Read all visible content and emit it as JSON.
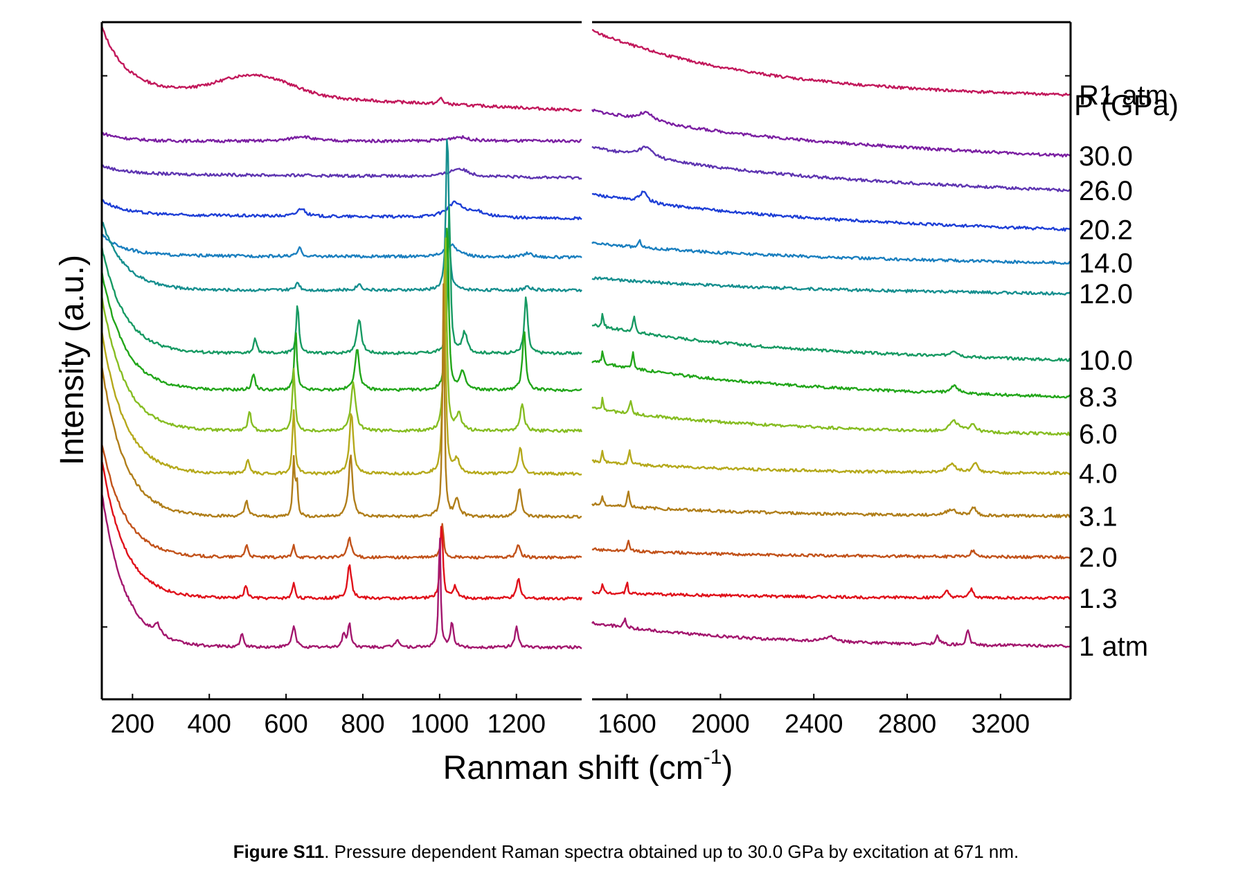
{
  "chart_data": {
    "type": "line",
    "title": "",
    "xlabel": "Ranman shift (cm",
    "xlabel_sup": "-1",
    "xlabel_end": ")",
    "ylabel": "Intensity (a.u.)",
    "legend_title": "P (GPa)",
    "axis_break": [
      1370,
      1450
    ],
    "xlim": [
      120,
      3500
    ],
    "xticks_left": [
      200,
      400,
      600,
      800,
      1000,
      1200
    ],
    "xticks_right": [
      1600,
      2000,
      2400,
      2800,
      3200
    ],
    "y_axis": "arbitrary units, traces vertically offset",
    "series": [
      {
        "label": "R1 atm",
        "color": "#c2185b",
        "offset": 13.5,
        "left_base": [
          1.5,
          0.2
        ],
        "right_base": [
          1.6,
          -0.05
        ],
        "hump": true,
        "peaks": [
          [
            1003,
            0.15,
            6
          ]
        ]
      },
      {
        "label": "30.0",
        "color": "#7b1fa2",
        "offset": 12.4,
        "left_base": [
          0.2,
          0.0
        ],
        "right_base": [
          0.75,
          -0.4
        ],
        "peaks": [
          [
            640,
            0.12,
            30
          ],
          [
            1050,
            0.1,
            30
          ],
          [
            1680,
            0.2,
            40
          ]
        ]
      },
      {
        "label": "26.0",
        "color": "#5e35b1",
        "offset": 11.5,
        "left_base": [
          0.2,
          0.1
        ],
        "right_base": [
          0.75,
          -0.35
        ],
        "peaks": [
          [
            1050,
            0.2,
            30
          ],
          [
            1680,
            0.25,
            40
          ]
        ]
      },
      {
        "label": "20.2",
        "color": "#1e3fd6",
        "offset": 10.5,
        "left_base": [
          0.35,
          0.1
        ],
        "right_base": [
          0.6,
          -0.3
        ],
        "peaks": [
          [
            640,
            0.2,
            12
          ],
          [
            1040,
            0.35,
            25
          ],
          [
            1100,
            0.12,
            30
          ],
          [
            1670,
            0.25,
            20
          ]
        ]
      },
      {
        "label": "14.0",
        "color": "#1a7fbf",
        "offset": 9.55,
        "left_base": [
          0.5,
          0.05
        ],
        "right_base": [
          0.35,
          -0.15
        ],
        "peaks": [
          [
            635,
            0.2,
            6
          ],
          [
            1030,
            0.3,
            20
          ],
          [
            1230,
            0.1,
            15
          ],
          [
            1655,
            0.15,
            8
          ]
        ]
      },
      {
        "label": "12.0",
        "color": "#168f8f",
        "offset": 8.75,
        "left_base": [
          1.7,
          0.0
        ],
        "right_base": [
          0.3,
          -0.1
        ],
        "peaks": [
          [
            630,
            0.2,
            6
          ],
          [
            790,
            0.15,
            8
          ],
          [
            1020,
            4.0,
            4
          ],
          [
            1230,
            0.1,
            8
          ]
        ]
      },
      {
        "label": "10.0",
        "color": "#179a63",
        "offset": 7.2,
        "left_base": [
          2.6,
          0.0
        ],
        "right_base": [
          0.7,
          -0.2
        ],
        "peaks": [
          [
            520,
            0.35,
            5
          ],
          [
            630,
            1.25,
            4
          ],
          [
            790,
            0.85,
            7
          ],
          [
            1025,
            3.6,
            4
          ],
          [
            1065,
            0.5,
            8
          ],
          [
            1225,
            1.4,
            5
          ],
          [
            1495,
            0.35,
            4
          ],
          [
            1630,
            0.4,
            5
          ],
          [
            3000,
            0.15,
            20
          ]
        ]
      },
      {
        "label": "8.3",
        "color": "#22a61a",
        "offset": 6.3,
        "left_base": [
          2.9,
          0.0
        ],
        "right_base": [
          0.7,
          -0.2
        ],
        "peaks": [
          [
            515,
            0.4,
            5
          ],
          [
            625,
            1.45,
            4
          ],
          [
            785,
            1.0,
            7
          ],
          [
            1020,
            4.3,
            4
          ],
          [
            1060,
            0.45,
            8
          ],
          [
            1220,
            1.5,
            5
          ],
          [
            1495,
            0.35,
            4
          ],
          [
            1625,
            0.4,
            5
          ],
          [
            3000,
            0.2,
            20
          ]
        ]
      },
      {
        "label": "6.0",
        "color": "#86bd22",
        "offset": 5.3,
        "left_base": [
          3.3,
          0.0
        ],
        "right_base": [
          0.55,
          -0.1
        ],
        "peaks": [
          [
            505,
            0.45,
            5
          ],
          [
            620,
            1.55,
            4
          ],
          [
            775,
            1.2,
            7
          ],
          [
            1015,
            4.9,
            4
          ],
          [
            1050,
            0.4,
            8
          ],
          [
            1215,
            0.65,
            6
          ],
          [
            1495,
            0.3,
            4
          ],
          [
            1615,
            0.35,
            5
          ],
          [
            3000,
            0.25,
            25
          ],
          [
            3080,
            0.2,
            15
          ]
        ]
      },
      {
        "label": "4.0",
        "color": "#b5a91b",
        "offset": 4.25,
        "left_base": [
          3.5,
          0.0
        ],
        "right_base": [
          0.3,
          0.0
        ],
        "peaks": [
          [
            500,
            0.35,
            5
          ],
          [
            620,
            1.55,
            4
          ],
          [
            770,
            1.5,
            6
          ],
          [
            1012,
            5.2,
            4
          ],
          [
            1045,
            0.35,
            8
          ],
          [
            1210,
            0.65,
            6
          ],
          [
            1495,
            0.3,
            4
          ],
          [
            1610,
            0.35,
            5
          ],
          [
            2990,
            0.2,
            25
          ],
          [
            3090,
            0.25,
            12
          ]
        ]
      },
      {
        "label": "3.1",
        "color": "#b07e1a",
        "offset": 3.2,
        "left_base": [
          3.7,
          0.0
        ],
        "right_base": [
          0.3,
          0.0
        ],
        "peaks": [
          [
            497,
            0.4,
            5
          ],
          [
            620,
            1.4,
            3
          ],
          [
            628,
            0.9,
            3
          ],
          [
            768,
            1.5,
            6
          ],
          [
            1010,
            5.7,
            3
          ],
          [
            1045,
            0.4,
            8
          ],
          [
            1208,
            0.7,
            6
          ],
          [
            1495,
            0.25,
            4
          ],
          [
            1605,
            0.4,
            5
          ],
          [
            2990,
            0.15,
            25
          ],
          [
            3085,
            0.2,
            12
          ]
        ]
      },
      {
        "label": "2.0",
        "color": "#c2521a",
        "offset": 2.2,
        "left_base": [
          2.8,
          0.0
        ],
        "right_base": [
          0.2,
          0.0
        ],
        "peaks": [
          [
            497,
            0.3,
            5
          ],
          [
            620,
            0.3,
            4
          ],
          [
            765,
            0.5,
            6
          ],
          [
            1007,
            0.85,
            4
          ],
          [
            1205,
            0.3,
            6
          ],
          [
            1605,
            0.25,
            5
          ],
          [
            3080,
            0.15,
            12
          ]
        ]
      },
      {
        "label": "1.3",
        "color": "#e0101a",
        "offset": 1.2,
        "left_base": [
          3.4,
          0.0
        ],
        "right_base": [
          0.15,
          0.0
        ],
        "peaks": [
          [
            495,
            0.3,
            5
          ],
          [
            620,
            0.4,
            4
          ],
          [
            765,
            0.85,
            6
          ],
          [
            1005,
            1.9,
            4
          ],
          [
            1040,
            0.3,
            6
          ],
          [
            1205,
            0.5,
            5
          ],
          [
            1495,
            0.2,
            4
          ],
          [
            1600,
            0.3,
            4
          ],
          [
            2970,
            0.15,
            10
          ],
          [
            3075,
            0.2,
            10
          ]
        ]
      },
      {
        "label": "1 atm",
        "color": "#a3176e",
        "offset": 0.0,
        "left_base": [
          3.8,
          0.0
        ],
        "right_base": [
          0.6,
          0.0
        ],
        "peaks": [
          [
            265,
            0.25,
            10
          ],
          [
            485,
            0.3,
            5
          ],
          [
            620,
            0.5,
            6
          ],
          [
            750,
            0.3,
            5
          ],
          [
            765,
            0.55,
            5
          ],
          [
            890,
            0.2,
            6
          ],
          [
            1000,
            2.9,
            3
          ],
          [
            1032,
            0.6,
            5
          ],
          [
            1200,
            0.5,
            5
          ],
          [
            1590,
            0.25,
            5
          ],
          [
            2470,
            0.12,
            30
          ],
          [
            2930,
            0.2,
            10
          ],
          [
            3060,
            0.35,
            8
          ]
        ]
      }
    ]
  },
  "caption": {
    "label": "Figure S11",
    "text": ". Pressure dependent Raman spectra obtained up to 30.0 GPa by excitation at 671 nm."
  }
}
